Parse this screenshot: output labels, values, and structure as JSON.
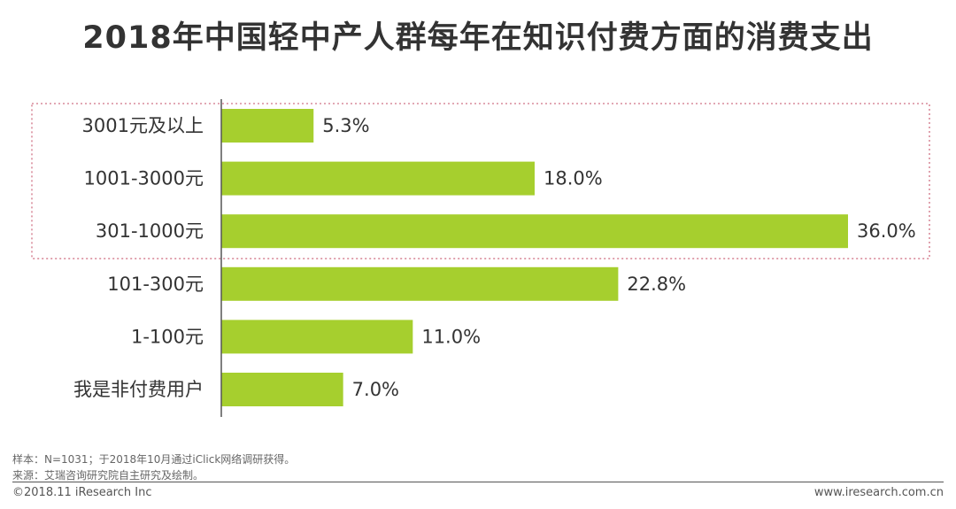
{
  "title": "2018年中国轻中产人群每年在知识付费方面的消费支出",
  "chart_data": {
    "type": "bar",
    "orientation": "horizontal",
    "categories": [
      "3001元及以上",
      "1001-3000元",
      "301-1000元",
      "101-300元",
      "1-100元",
      "我是非付费用户"
    ],
    "values": [
      5.3,
      18.0,
      36.0,
      22.8,
      11.0,
      7.0
    ],
    "value_labels": [
      "5.3%",
      "18.0%",
      "36.0%",
      "22.8%",
      "11.0%",
      "7.0%"
    ],
    "unit": "%",
    "highlighted_categories": [
      "3001元及以上",
      "1001-3000元",
      "301-1000元"
    ],
    "xlim": [
      0,
      36.0
    ],
    "grid": false,
    "bar_color": "#a6cf2e",
    "highlight_border_color": "#d98b9b"
  },
  "notes": {
    "sample": "样本：N=1031；于2018年10月通过iClick网络调研获得。",
    "source": "来源：艾瑞咨询研究院自主研究及绘制。"
  },
  "footer": {
    "copyright": "©2018.11 iResearch Inc",
    "website": "www.iresearch.com.cn"
  }
}
